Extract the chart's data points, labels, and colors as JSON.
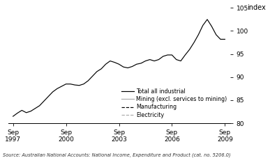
{
  "ylabel": "index",
  "ylim": [
    80,
    105
  ],
  "yticks": [
    80,
    85,
    90,
    95,
    100,
    105
  ],
  "source_text": "Source: Australian National Accounts: National Income, Expenditure and Product (cat. no. 5206.0)",
  "xtick_positions": [
    1997.667,
    2000.667,
    2003.667,
    2006.667,
    2009.667
  ],
  "xtick_labels": [
    "Sep\n1997",
    "Sep\n2000",
    "Sep\n2003",
    "Sep\n2006",
    "Sep\n2009"
  ],
  "xlim": [
    1997.4,
    2009.95
  ],
  "line_color_dark": "#000000",
  "line_color_light": "#aaaaaa",
  "total_all_industrial": [
    81.5,
    82.2,
    82.8,
    82.3,
    82.6,
    83.2,
    83.8,
    84.8,
    85.8,
    86.8,
    87.5,
    88.0,
    88.5,
    88.5,
    88.3,
    88.2,
    88.5,
    89.2,
    90.2,
    91.2,
    91.8,
    92.8,
    93.5,
    93.2,
    92.8,
    92.2,
    92.0,
    92.3,
    92.8,
    93.0,
    93.5,
    93.8,
    93.5,
    93.8,
    94.5,
    94.8,
    94.8,
    93.8,
    93.5,
    94.8,
    96.0,
    97.5,
    99.2,
    101.2,
    102.5,
    101.0,
    99.2,
    98.2,
    98.2
  ],
  "legend_fontsize": 5.8,
  "tick_fontsize": 6.5,
  "ylabel_fontsize": 7.0,
  "source_fontsize": 4.8,
  "linewidth": 0.85
}
